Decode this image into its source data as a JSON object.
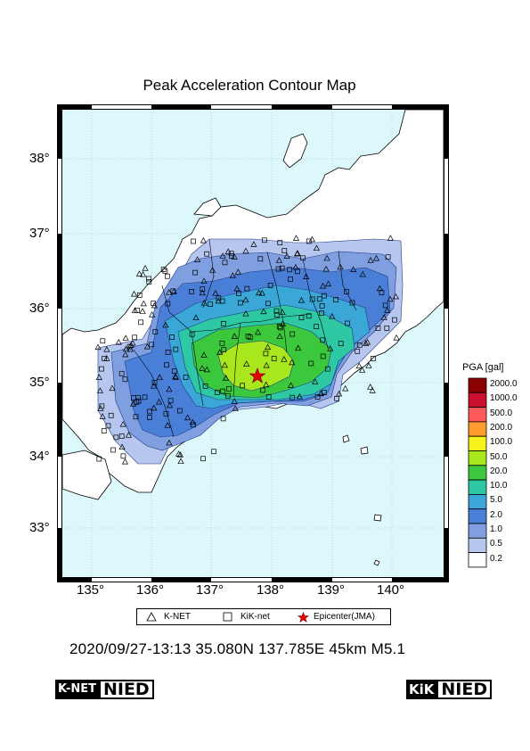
{
  "title": "Peak Acceleration Contour Map",
  "lat_labels": [
    "38°",
    "37°",
    "36°",
    "35°",
    "34°",
    "33°"
  ],
  "lon_labels": [
    "135°",
    "136°",
    "137°",
    "138°",
    "139°",
    "140°"
  ],
  "legend": {
    "title": "PGA [gal]",
    "levels": [
      {
        "label": "2000.0",
        "color": "#8b0000"
      },
      {
        "label": "1000.0",
        "color": "#c8102e"
      },
      {
        "label": "500.0",
        "color": "#ff5a5a"
      },
      {
        "label": "200.0",
        "color": "#ff9a2e"
      },
      {
        "label": "100.0",
        "color": "#f7f21e"
      },
      {
        "label": "50.0",
        "color": "#a8e61e"
      },
      {
        "label": "20.0",
        "color": "#3cc83c"
      },
      {
        "label": "10.0",
        "color": "#2ec9a4"
      },
      {
        "label": "5.0",
        "color": "#3aa7d6"
      },
      {
        "label": "2.0",
        "color": "#4a7fd8"
      },
      {
        "label": "1.0",
        "color": "#7f9fe0"
      },
      {
        "label": "0.5",
        "color": "#b6c6ee"
      },
      {
        "label": "0.2",
        "color": "#ffffff"
      }
    ]
  },
  "symbols": {
    "knet": "K-NET",
    "kiknet": "KiK-net",
    "epicenter": "Epicenter(JMA)"
  },
  "event": {
    "line": "2020/09/27-13:13 35.080N 137.785E 45km M5.1",
    "epicenter_lat": 35.08,
    "epicenter_lon": 137.785
  },
  "logos": {
    "knet_prefix": "K-NET",
    "kiknet_prefix": "KiK",
    "nied": "NIED"
  },
  "colors": {
    "sea": "#dcf8fb",
    "land": "#ffffff"
  }
}
